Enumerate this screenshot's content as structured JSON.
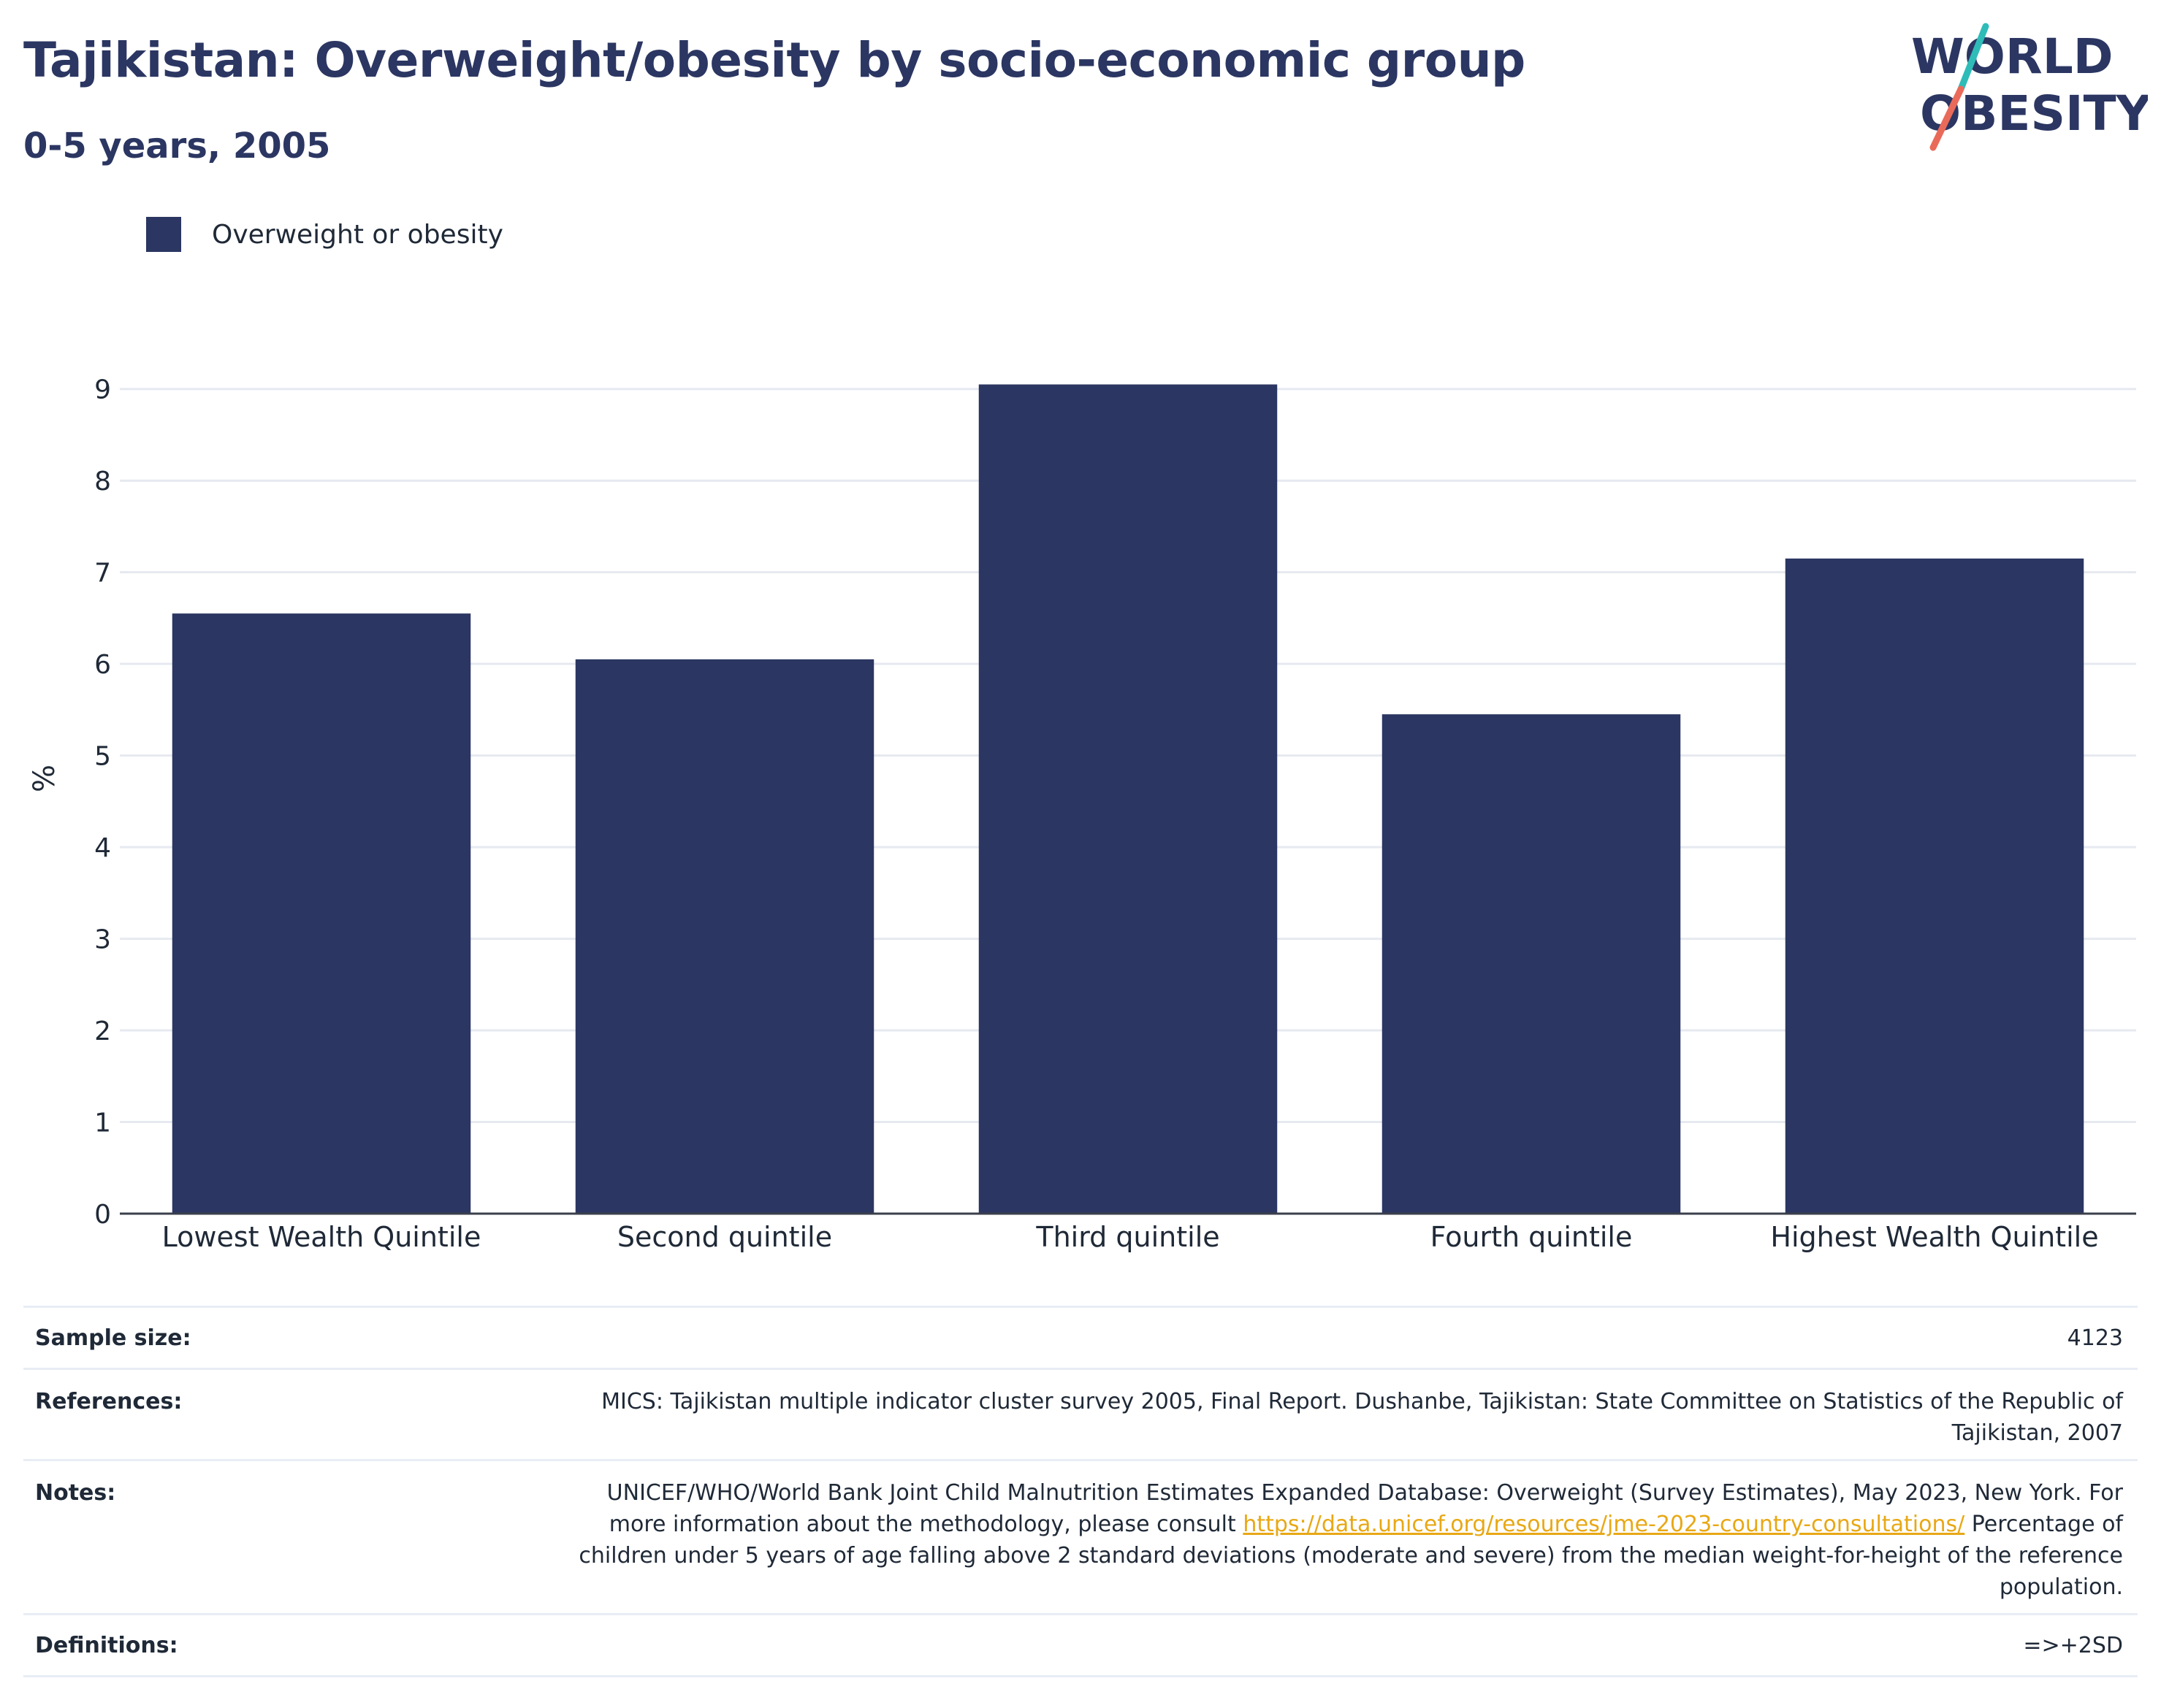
{
  "header": {
    "title": "Tajikistan: Overweight/obesity by socio-economic group",
    "subtitle": "0-5 years, 2005"
  },
  "logo": {
    "line1": "WORLD",
    "line2": "OBESITY"
  },
  "colors": {
    "bar": "#2b3662",
    "title": "#2b3662",
    "grid": "#e6e9f0",
    "link": "#e8a815",
    "logo_teal": "#2fbcb8",
    "logo_coral": "#ea6a5a"
  },
  "chart_data": {
    "type": "bar",
    "categories": [
      "Lowest Wealth Quintile",
      "Second quintile",
      "Third quintile",
      "Fourth quintile",
      "Highest Wealth Quintile"
    ],
    "series": [
      {
        "name": "Overweight or obesity",
        "values": [
          6.55,
          6.05,
          9.05,
          5.45,
          7.15
        ]
      }
    ],
    "ylabel": "%",
    "ylim": [
      0,
      9.5
    ],
    "yticks": [
      0,
      1,
      2,
      3,
      4,
      5,
      6,
      7,
      8,
      9
    ],
    "grid": true,
    "legend_position": "top-left"
  },
  "info": {
    "sample_size_label": "Sample size:",
    "sample_size_value": "4123",
    "references_label": "References:",
    "references_value": "MICS: Tajikistan multiple indicator cluster survey 2005, Final Report. Dushanbe, Tajikistan: State Committee on Statistics of the Republic of Tajikistan, 2007",
    "notes_label": "Notes:",
    "notes_text_1": "UNICEF/WHO/World Bank Joint Child Malnutrition Estimates Expanded Database: Overweight (Survey Estimates), May 2023, New York. For more information about the methodology, please consult",
    "notes_link": "https://data.unicef.org/resources/jme-2023-country-consultations/",
    "notes_text_2": "Percentage of children under 5 years of age falling above 2 standard deviations (moderate and severe) from the median weight-for-height of the reference population.",
    "definitions_label": "Definitions:",
    "definitions_value": "=>+2SD"
  }
}
